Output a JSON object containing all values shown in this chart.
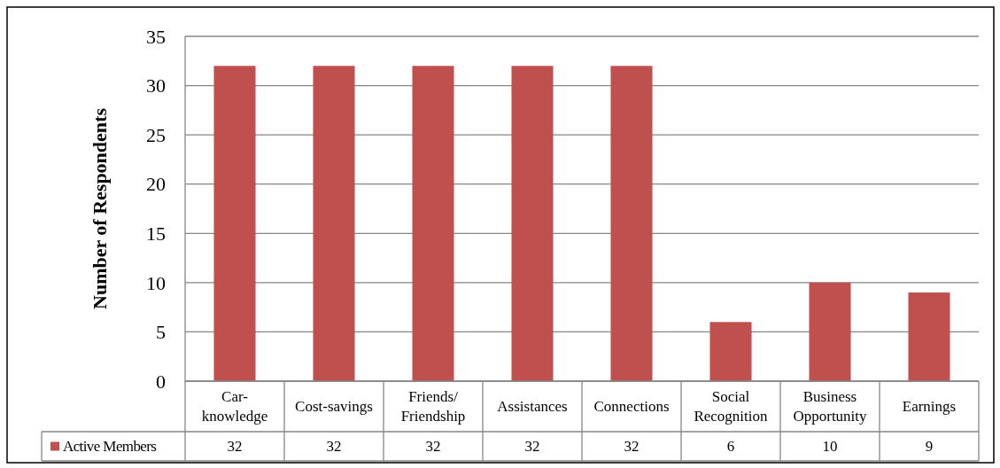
{
  "chart_data": {
    "type": "bar",
    "ylabel": "Number of Respondents",
    "categories": [
      "Car-\nknowledge",
      "Cost-savings",
      "Friends/\nFriendship",
      "Assistances",
      "Connections",
      "Social\nRecognition",
      "Business\nOpportunity",
      "Earnings"
    ],
    "series": [
      {
        "name": "Active Members",
        "color": "#c0504d",
        "values": [
          32,
          32,
          32,
          32,
          32,
          6,
          10,
          9
        ]
      }
    ],
    "ylim": [
      0,
      35
    ],
    "yticks": [
      0,
      5,
      10,
      15,
      20,
      25,
      30,
      35
    ],
    "grid": "y",
    "legend": "bottom",
    "data_labels": true
  }
}
